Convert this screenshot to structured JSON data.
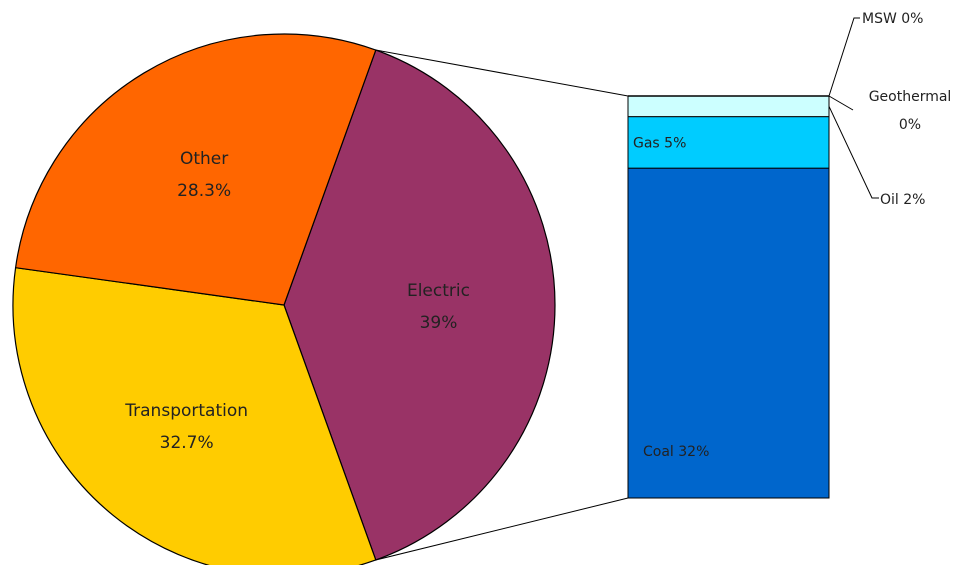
{
  "chart_data": [
    {
      "type": "pie",
      "slices": [
        {
          "name": "Electric",
          "value": 39,
          "label": "39%",
          "color": "#993366"
        },
        {
          "name": "Transportation",
          "value": 32.7,
          "label": "32.7%",
          "color": "#FFCC00"
        },
        {
          "name": "Other",
          "value": 28.3,
          "label": "28.3%",
          "color": "#FF6600"
        }
      ]
    },
    {
      "type": "bar",
      "stacked": true,
      "breakdown_of": "Electric",
      "segments": [
        {
          "name": "Coal",
          "value": 32,
          "label": "Coal 32%",
          "color": "#0066CC"
        },
        {
          "name": "Gas",
          "value": 5,
          "label": "Gas 5%",
          "color": "#00CCFF"
        },
        {
          "name": "Oil",
          "value": 2,
          "label": "Oil 2%",
          "color": "#CCFFFF"
        },
        {
          "name": "Geothermal",
          "value": 0,
          "label_lines": [
            "Geothermal",
            "0%"
          ],
          "color": "#99CCFF"
        },
        {
          "name": "MSW",
          "value": 0,
          "label": "MSW 0%",
          "color": "#000080"
        }
      ]
    }
  ]
}
